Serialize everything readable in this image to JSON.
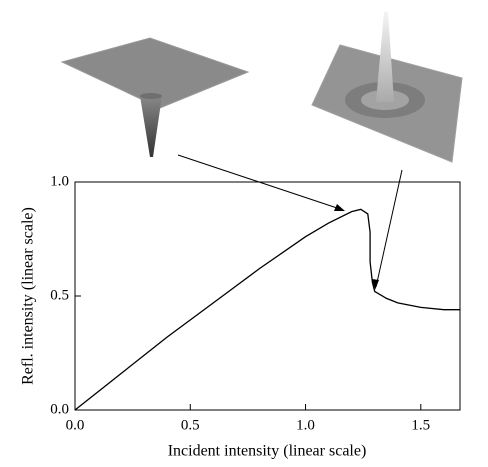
{
  "chart_data": {
    "type": "line",
    "xlabel": "Incident  intensity (linear scale)",
    "ylabel": "Refl. intensity (linear scale)",
    "x": [
      0,
      0.2,
      0.4,
      0.6,
      0.8,
      1.0,
      1.1,
      1.2,
      1.24,
      1.27,
      1.28,
      1.28,
      1.29,
      1.3,
      1.35,
      1.4,
      1.5,
      1.6,
      1.67
    ],
    "values": [
      0,
      0.16,
      0.32,
      0.47,
      0.62,
      0.76,
      0.82,
      0.87,
      0.88,
      0.86,
      0.78,
      0.65,
      0.56,
      0.52,
      0.49,
      0.47,
      0.45,
      0.44,
      0.44
    ],
    "color": "#000000",
    "xlim": [
      0,
      1.67
    ],
    "ylim": [
      0,
      1
    ],
    "xticks": [
      {
        "value": 0,
        "label": "0.0"
      },
      {
        "value": 0.5,
        "label": "0.5"
      },
      {
        "value": 1,
        "label": "1.0"
      },
      {
        "value": 1.5,
        "label": "1.5"
      }
    ],
    "yticks": [
      {
        "value": 0,
        "label": "0.0"
      },
      {
        "value": 0.5,
        "label": "0.5"
      },
      {
        "value": 1,
        "label": "1.0"
      }
    ]
  }
}
